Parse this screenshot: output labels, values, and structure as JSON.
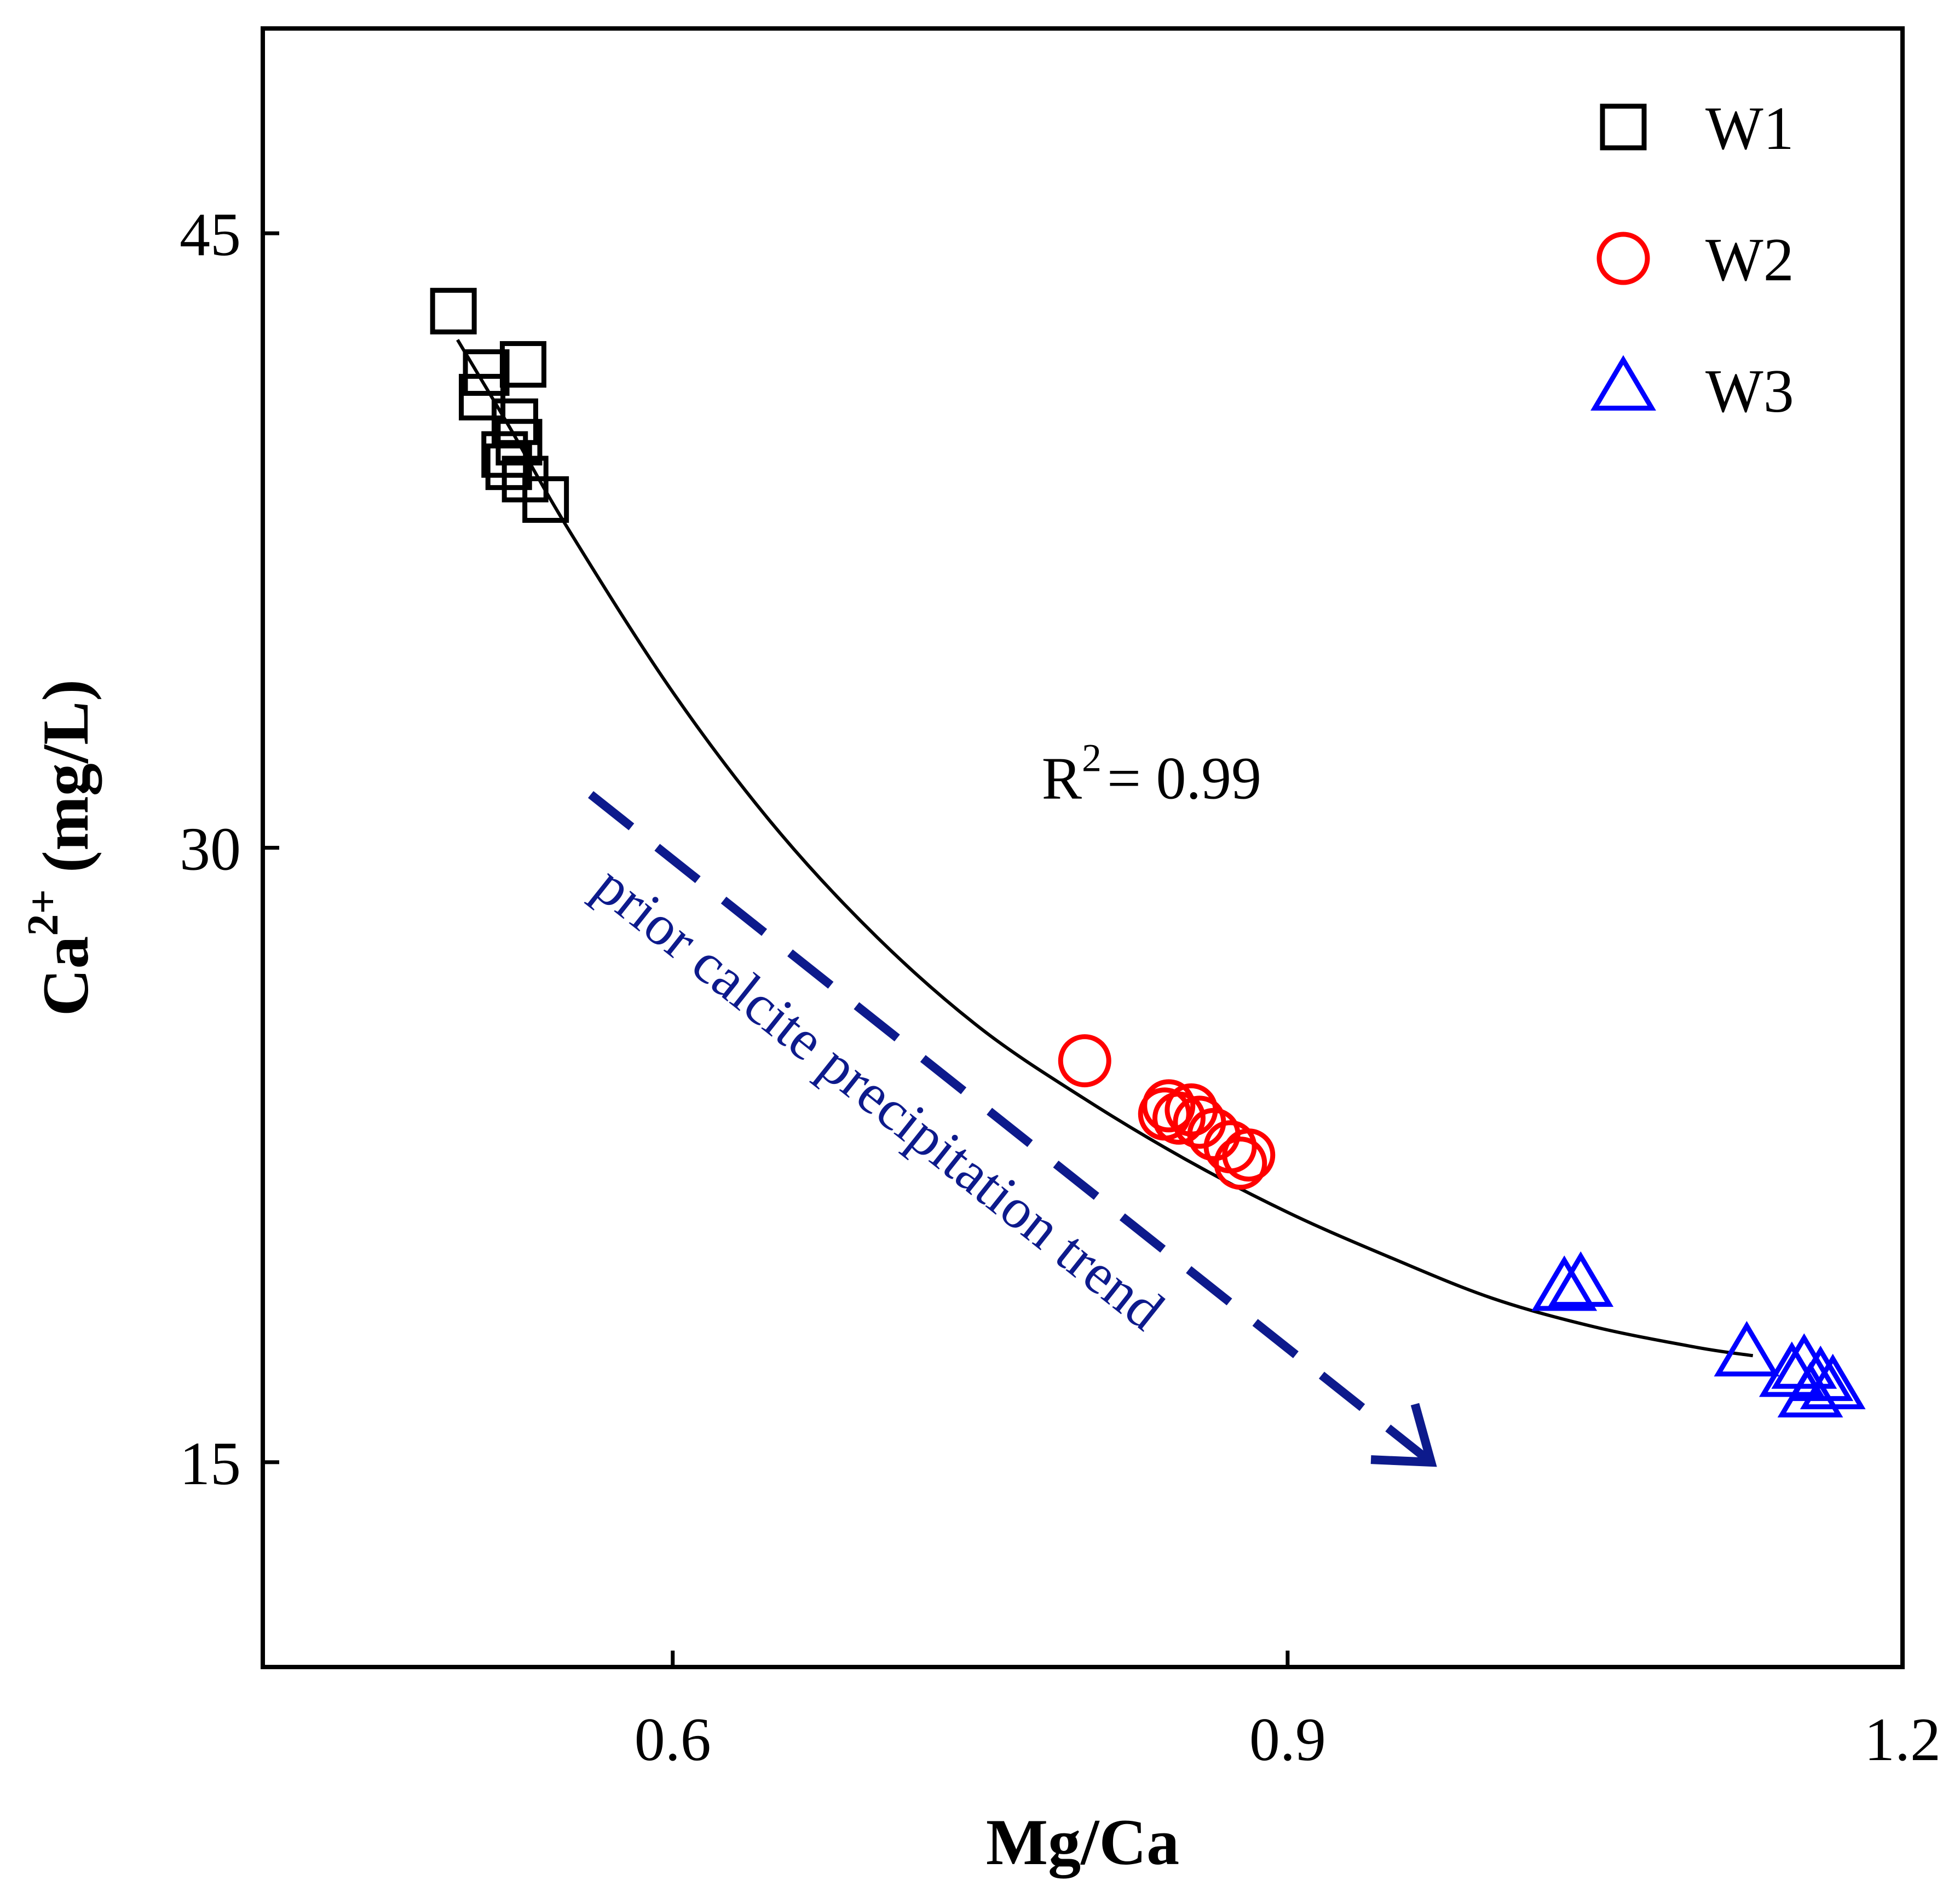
{
  "chart_data": {
    "type": "scatter",
    "title": "",
    "xlabel": "Mg/Ca",
    "ylabel_main": "Ca",
    "ylabel_superscript": "2+",
    "ylabel_unit": " (mg/L)",
    "xlim": [
      0.4,
      1.2
    ],
    "ylim": [
      10,
      50
    ],
    "x_ticks": [
      0.6,
      0.9,
      1.2
    ],
    "x_tick_labels": [
      "0.6",
      "0.9",
      "1.2"
    ],
    "y_ticks": [
      15,
      30,
      45
    ],
    "y_tick_labels": [
      "15",
      "30",
      "45"
    ],
    "legend_position": "top-right",
    "series": [
      {
        "name": "W1",
        "marker": "square",
        "color": "#000000",
        "points": [
          {
            "x": 0.493,
            "y": 43.1
          },
          {
            "x": 0.509,
            "y": 41.6
          },
          {
            "x": 0.507,
            "y": 41.0
          },
          {
            "x": 0.527,
            "y": 41.8
          },
          {
            "x": 0.523,
            "y": 40.4
          },
          {
            "x": 0.525,
            "y": 39.9
          },
          {
            "x": 0.518,
            "y": 39.6
          },
          {
            "x": 0.52,
            "y": 39.3
          },
          {
            "x": 0.528,
            "y": 39.0
          },
          {
            "x": 0.538,
            "y": 38.5
          }
        ]
      },
      {
        "name": "W2",
        "marker": "circle",
        "color": "#ff0000",
        "points": [
          {
            "x": 0.801,
            "y": 24.8
          },
          {
            "x": 0.842,
            "y": 23.7
          },
          {
            "x": 0.847,
            "y": 23.4
          },
          {
            "x": 0.853,
            "y": 23.6
          },
          {
            "x": 0.857,
            "y": 23.3
          },
          {
            "x": 0.864,
            "y": 23.0
          },
          {
            "x": 0.872,
            "y": 22.7
          },
          {
            "x": 0.877,
            "y": 22.3
          },
          {
            "x": 0.881,
            "y": 22.5
          },
          {
            "x": 0.84,
            "y": 23.5
          }
        ]
      },
      {
        "name": "W3",
        "marker": "triangle",
        "color": "#0000ff",
        "points": [
          {
            "x": 1.035,
            "y": 19.2
          },
          {
            "x": 1.043,
            "y": 19.3
          },
          {
            "x": 1.124,
            "y": 17.6
          },
          {
            "x": 1.146,
            "y": 17.1
          },
          {
            "x": 1.152,
            "y": 17.3
          },
          {
            "x": 1.16,
            "y": 17.0
          },
          {
            "x": 1.166,
            "y": 16.8
          },
          {
            "x": 1.155,
            "y": 16.6
          }
        ]
      }
    ],
    "fit_curve": {
      "color": "#000000",
      "points": [
        {
          "x": 0.495,
          "y": 42.4
        },
        {
          "x": 0.52,
          "y": 40.3
        },
        {
          "x": 0.55,
          "y": 37.7
        },
        {
          "x": 0.6,
          "y": 33.8
        },
        {
          "x": 0.65,
          "y": 30.5
        },
        {
          "x": 0.7,
          "y": 27.8
        },
        {
          "x": 0.75,
          "y": 25.6
        },
        {
          "x": 0.8,
          "y": 23.9
        },
        {
          "x": 0.85,
          "y": 22.4
        },
        {
          "x": 0.9,
          "y": 21.1
        },
        {
          "x": 0.95,
          "y": 20.0
        },
        {
          "x": 1.0,
          "y": 19.0
        },
        {
          "x": 1.05,
          "y": 18.3
        },
        {
          "x": 1.1,
          "y": 17.8
        },
        {
          "x": 1.127,
          "y": 17.6
        }
      ]
    },
    "annotations": {
      "r2_label": "R",
      "r2_superscript": "2",
      "r2_value": "= 0.99",
      "r2_anchor": {
        "x": 0.78,
        "y": 31.2
      },
      "trend_text": "prior calcite precipitation trend",
      "trend_color": "#0d1a8c",
      "trend_arrow": {
        "x1": 0.56,
        "y1": 31.3,
        "x2": 0.97,
        "y2": 15.0
      },
      "trend_text_anchor": {
        "x": 0.56,
        "y": 28.9
      }
    }
  }
}
